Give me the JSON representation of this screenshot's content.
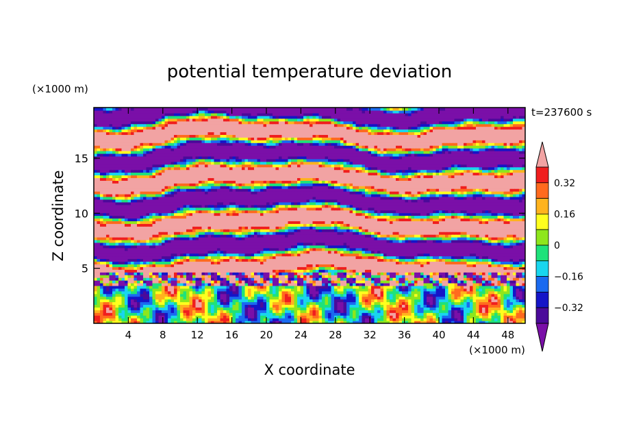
{
  "chart_data": {
    "type": "heatmap",
    "title": "potential temperature deviation",
    "xlabel": "X coordinate",
    "ylabel": "Z coordinate",
    "x_unit": "(×1000 m)",
    "y_unit": "(×1000 m)",
    "time_label": "t=237600 s",
    "xlim": [
      0,
      50
    ],
    "ylim": [
      0,
      19.6
    ],
    "x_ticks": [
      4,
      8,
      12,
      16,
      20,
      24,
      28,
      32,
      36,
      40,
      44,
      48
    ],
    "y_ticks": [
      5,
      10,
      15
    ],
    "grid": false,
    "colorbar": {
      "placement": "right",
      "levels": [
        -0.4,
        -0.32,
        -0.24,
        -0.16,
        -0.08,
        0,
        0.08,
        0.16,
        0.24,
        0.32,
        0.4
      ],
      "tick_labels": [
        "0.32",
        "0.16",
        "0",
        "−0.16",
        "−0.32"
      ],
      "tick_values": [
        0.32,
        0.16,
        0,
        -0.16,
        -0.32
      ],
      "colors": [
        "#7a0fa8",
        "#4b0a9a",
        "#1515c8",
        "#1a6af0",
        "#19d6ee",
        "#1ee27a",
        "#8ee61c",
        "#ffff1e",
        "#ffb31e",
        "#ff6a1e",
        "#f01e1e",
        "#f2a3a3"
      ]
    },
    "field_description_layers": [
      {
        "z_range": [
          0,
          3.4
        ],
        "pattern": "smooth waves, values mostly -0.32 to 0.32"
      },
      {
        "z_range": [
          3.4,
          4.6
        ],
        "pattern": "thin turbulent layer, extremes"
      },
      {
        "z_range": [
          4.6,
          19.6
        ],
        "pattern": "elongated horizontal bands alternating > 0.4 and < -0.4"
      }
    ]
  }
}
